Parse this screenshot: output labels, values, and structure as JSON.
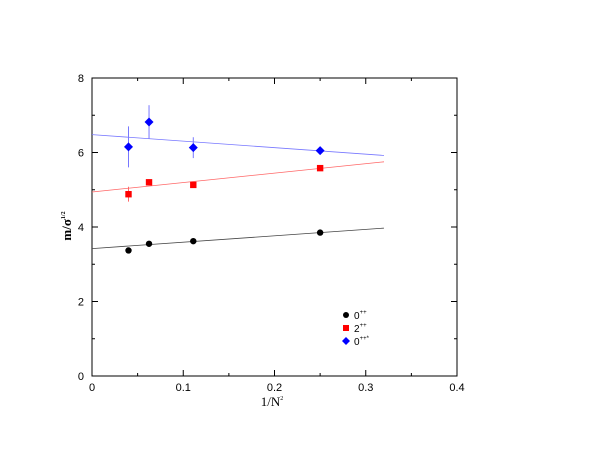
{
  "chart_data": {
    "type": "scatter",
    "xlabel_base": "1/N",
    "xlabel_sup": "2",
    "ylabel_base": "m/σ",
    "ylabel_sup": "1/2",
    "xlim": [
      0,
      0.4
    ],
    "ylim": [
      0,
      8
    ],
    "x_ticks": [
      0,
      0.1,
      0.2,
      0.3,
      0.4
    ],
    "x_tick_labels": [
      "0",
      "0.1",
      "0.2",
      "0.3",
      "0.4"
    ],
    "y_ticks": [
      0,
      2,
      4,
      6,
      8
    ],
    "y_tick_labels": [
      "0",
      "2",
      "4",
      "6",
      "8"
    ],
    "grid": false,
    "legend_position": "bottom-right",
    "series": [
      {
        "key": "s1",
        "legend_base": "0",
        "legend_sup": "++",
        "color": "#000000",
        "marker": "circle",
        "x": [
          0.04,
          0.0625,
          0.111,
          0.25
        ],
        "y": [
          3.37,
          3.55,
          3.62,
          3.85
        ],
        "err": [
          0.04,
          0.04,
          0.04,
          0.04
        ],
        "fit_x": [
          0,
          0.32
        ],
        "fit_y": [
          3.42,
          3.97
        ]
      },
      {
        "key": "s2",
        "legend_base": "2",
        "legend_sup": "++",
        "color": "#ff0000",
        "marker": "square",
        "x": [
          0.04,
          0.0625,
          0.111,
          0.25
        ],
        "y": [
          4.88,
          5.2,
          5.13,
          5.58
        ],
        "err": [
          0.2,
          0.08,
          0.08,
          0.06
        ],
        "fit_x": [
          0,
          0.32
        ],
        "fit_y": [
          4.94,
          5.75
        ]
      },
      {
        "key": "s3",
        "legend_base": "0",
        "legend_sup": "++*",
        "color": "#0000ff",
        "marker": "diamond",
        "x": [
          0.04,
          0.0625,
          0.111,
          0.25
        ],
        "y": [
          6.15,
          6.82,
          6.13,
          6.05
        ],
        "err": [
          0.55,
          0.45,
          0.28,
          0.08
        ],
        "fit_x": [
          0,
          0.32
        ],
        "fit_y": [
          6.48,
          5.92
        ]
      }
    ]
  }
}
